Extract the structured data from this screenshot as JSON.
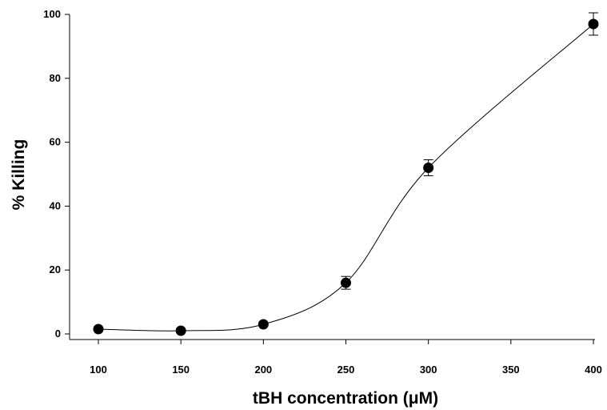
{
  "chart_data": {
    "type": "scatter",
    "title": "",
    "xlabel": "tBH concentration (μM)",
    "ylabel": "% Killing",
    "x_ticks": [
      "100",
      "150",
      "200",
      "250",
      "300",
      "350",
      "400"
    ],
    "y_ticks": [
      "0",
      "20",
      "40",
      "60",
      "80",
      "100"
    ],
    "xlim": [
      100,
      400
    ],
    "ylim": [
      0,
      100
    ],
    "grid": false,
    "marker": "filled-circle",
    "line": "smooth-fit",
    "color": "#000000",
    "series": [
      {
        "x": [
          100,
          150,
          200,
          250,
          300,
          400
        ],
        "y": [
          1.5,
          1.0,
          3.0,
          16.0,
          52.0,
          97.0
        ],
        "error": [
          0.5,
          0.5,
          0.7,
          2.0,
          2.5,
          3.5
        ]
      }
    ]
  }
}
